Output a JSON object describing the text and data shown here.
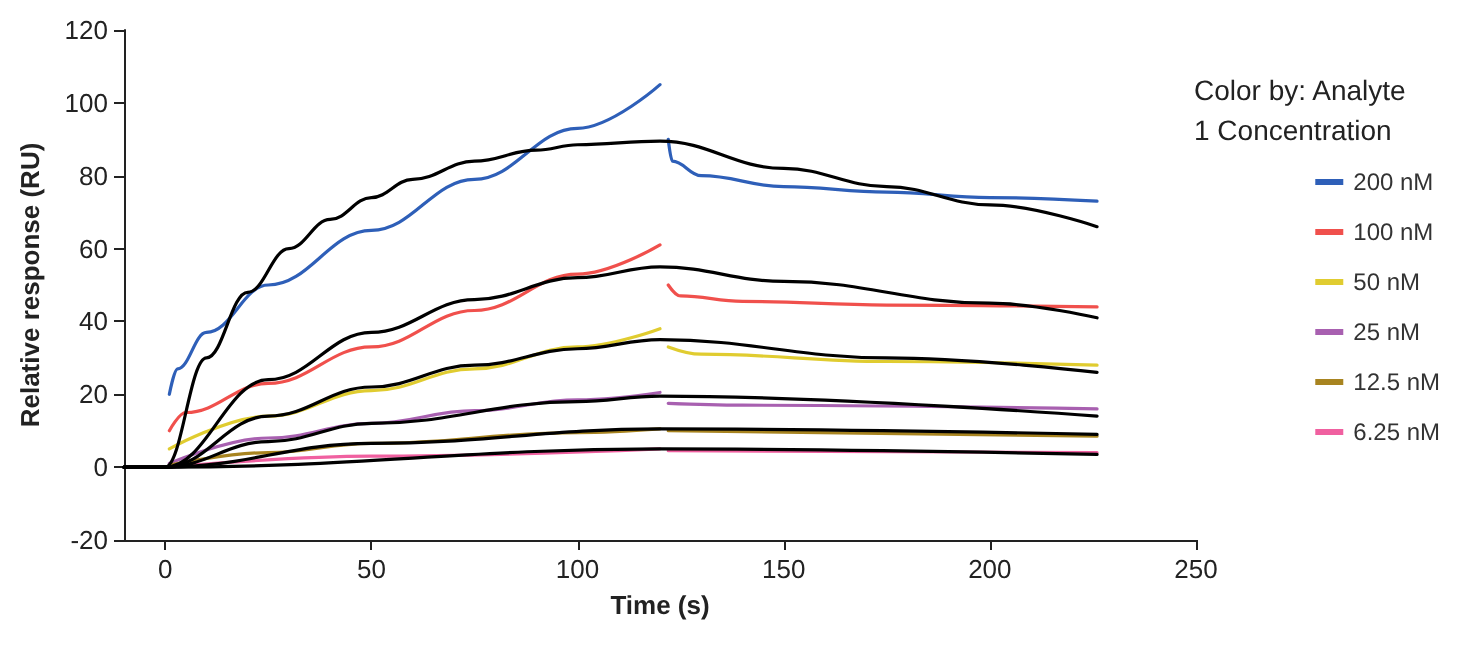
{
  "chart_data": {
    "type": "line",
    "xlabel": "Time (s)",
    "ylabel": "Relative response (RU)",
    "legend_title": "Color by: Analyte 1 Concentration",
    "legend": "right",
    "grid": false,
    "marker": "none",
    "line_style": "solid",
    "xlim": [
      -10,
      250
    ],
    "xticks": [
      0,
      50,
      100,
      150,
      200,
      250
    ],
    "ylim": [
      -20,
      120
    ],
    "yticks": [
      -20,
      0,
      20,
      40,
      60,
      80,
      100,
      120
    ],
    "series": [
      {
        "name": "200 nM",
        "color": "#2e5fb8",
        "x": [
          1,
          3,
          10,
          25,
          50,
          75,
          100,
          120,
          121,
          122,
          123,
          130,
          150,
          175,
          200,
          226
        ],
        "values": [
          20,
          27,
          37,
          50,
          65,
          79,
          93,
          105,
          null,
          90,
          84,
          80,
          77,
          75.5,
          74,
          73
        ]
      },
      {
        "name": "100 nM",
        "color": "#f0504c",
        "x": [
          1,
          5,
          25,
          50,
          75,
          100,
          120,
          121,
          122,
          125,
          140,
          175,
          226
        ],
        "values": [
          10,
          15,
          23,
          33,
          43,
          53,
          61,
          null,
          50,
          47,
          45.5,
          44.5,
          44
        ]
      },
      {
        "name": "50 nM",
        "color": "#e0cc30",
        "x": [
          1,
          25,
          50,
          75,
          100,
          120,
          121,
          122,
          130,
          175,
          226
        ],
        "values": [
          5,
          14,
          21,
          27,
          33,
          38,
          null,
          33,
          31,
          29,
          28
        ]
      },
      {
        "name": "25 nM",
        "color": "#a860b0",
        "x": [
          1,
          25,
          50,
          75,
          100,
          120,
          121,
          122,
          140,
          226
        ],
        "values": [
          1,
          8,
          12,
          15.5,
          18.5,
          20.5,
          null,
          17.5,
          17,
          16
        ]
      },
      {
        "name": "12.5 nM",
        "color": "#a88420",
        "x": [
          1,
          25,
          50,
          100,
          120,
          121,
          122,
          226
        ],
        "values": [
          0.5,
          4,
          6.5,
          9.5,
          10.5,
          null,
          10,
          8.5
        ]
      },
      {
        "name": "6.25 nM",
        "color": "#f060a0",
        "x": [
          1,
          50,
          120,
          121,
          122,
          226
        ],
        "values": [
          0,
          3,
          5,
          null,
          4.5,
          4
        ]
      },
      {
        "color": "#000000",
        "x": [
          -10,
          0,
          10,
          20,
          30,
          40,
          50,
          60,
          75,
          90,
          100,
          120,
          150,
          175,
          200,
          226
        ],
        "values": [
          0,
          0,
          30,
          48,
          60,
          68,
          74,
          79,
          84,
          87,
          88.5,
          89.5,
          82,
          77,
          72,
          66
        ]
      },
      {
        "color": "#000000",
        "x": [
          -10,
          0,
          25,
          50,
          75,
          100,
          120,
          150,
          200,
          226
        ],
        "values": [
          0,
          0,
          24,
          37,
          46,
          52,
          55,
          51,
          45,
          41
        ]
      },
      {
        "color": "#000000",
        "x": [
          -10,
          0,
          25,
          50,
          75,
          100,
          120,
          175,
          226
        ],
        "values": [
          0,
          0,
          14,
          22,
          28,
          32.5,
          35,
          30,
          26
        ]
      },
      {
        "color": "#000000",
        "x": [
          -10,
          0,
          25,
          50,
          100,
          120,
          226
        ],
        "values": [
          0,
          0,
          7,
          12,
          18,
          19.5,
          14
        ]
      },
      {
        "color": "#000000",
        "x": [
          -10,
          0,
          50,
          120,
          226
        ],
        "values": [
          0,
          0,
          6.5,
          10.5,
          9
        ]
      },
      {
        "color": "#000000",
        "x": [
          -10,
          0,
          120,
          226
        ],
        "values": [
          0,
          0,
          5,
          3.5
        ]
      }
    ]
  }
}
